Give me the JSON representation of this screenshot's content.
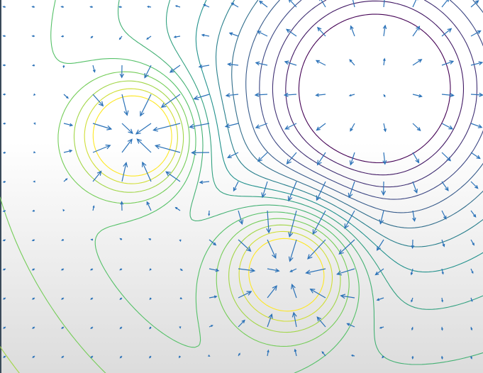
{
  "chart_data": {
    "type": "contour"
  }
}
